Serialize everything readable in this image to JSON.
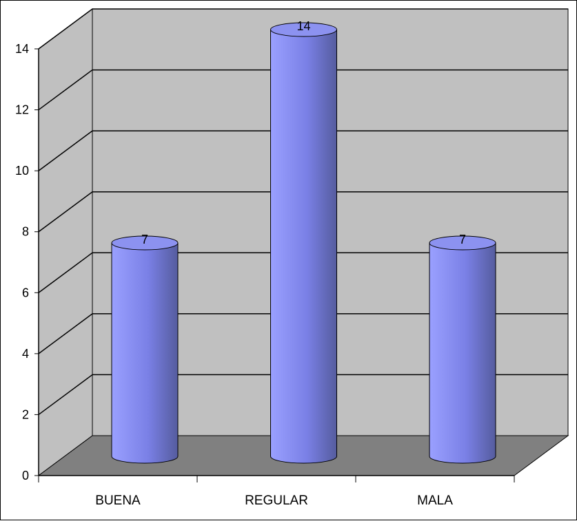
{
  "chart_data": {
    "type": "bar",
    "style": "3d-cylinder",
    "categories": [
      "BUENA",
      "REGULAR",
      "MALA"
    ],
    "values": [
      7,
      14,
      7
    ],
    "data_labels": [
      "7",
      "14",
      "7"
    ],
    "y_ticks": [
      "0",
      "2",
      "4",
      "6",
      "8",
      "10",
      "12",
      "14"
    ],
    "ylim": [
      0,
      14
    ],
    "grid": true,
    "legend": "none",
    "colors": {
      "bar_light": "#9aa0ff",
      "bar_mid": "#7a80e6",
      "bar_dark": "#555c9e",
      "bar_top": "#8c92f0",
      "wall": "#c0c0c0",
      "floor": "#808080"
    }
  }
}
